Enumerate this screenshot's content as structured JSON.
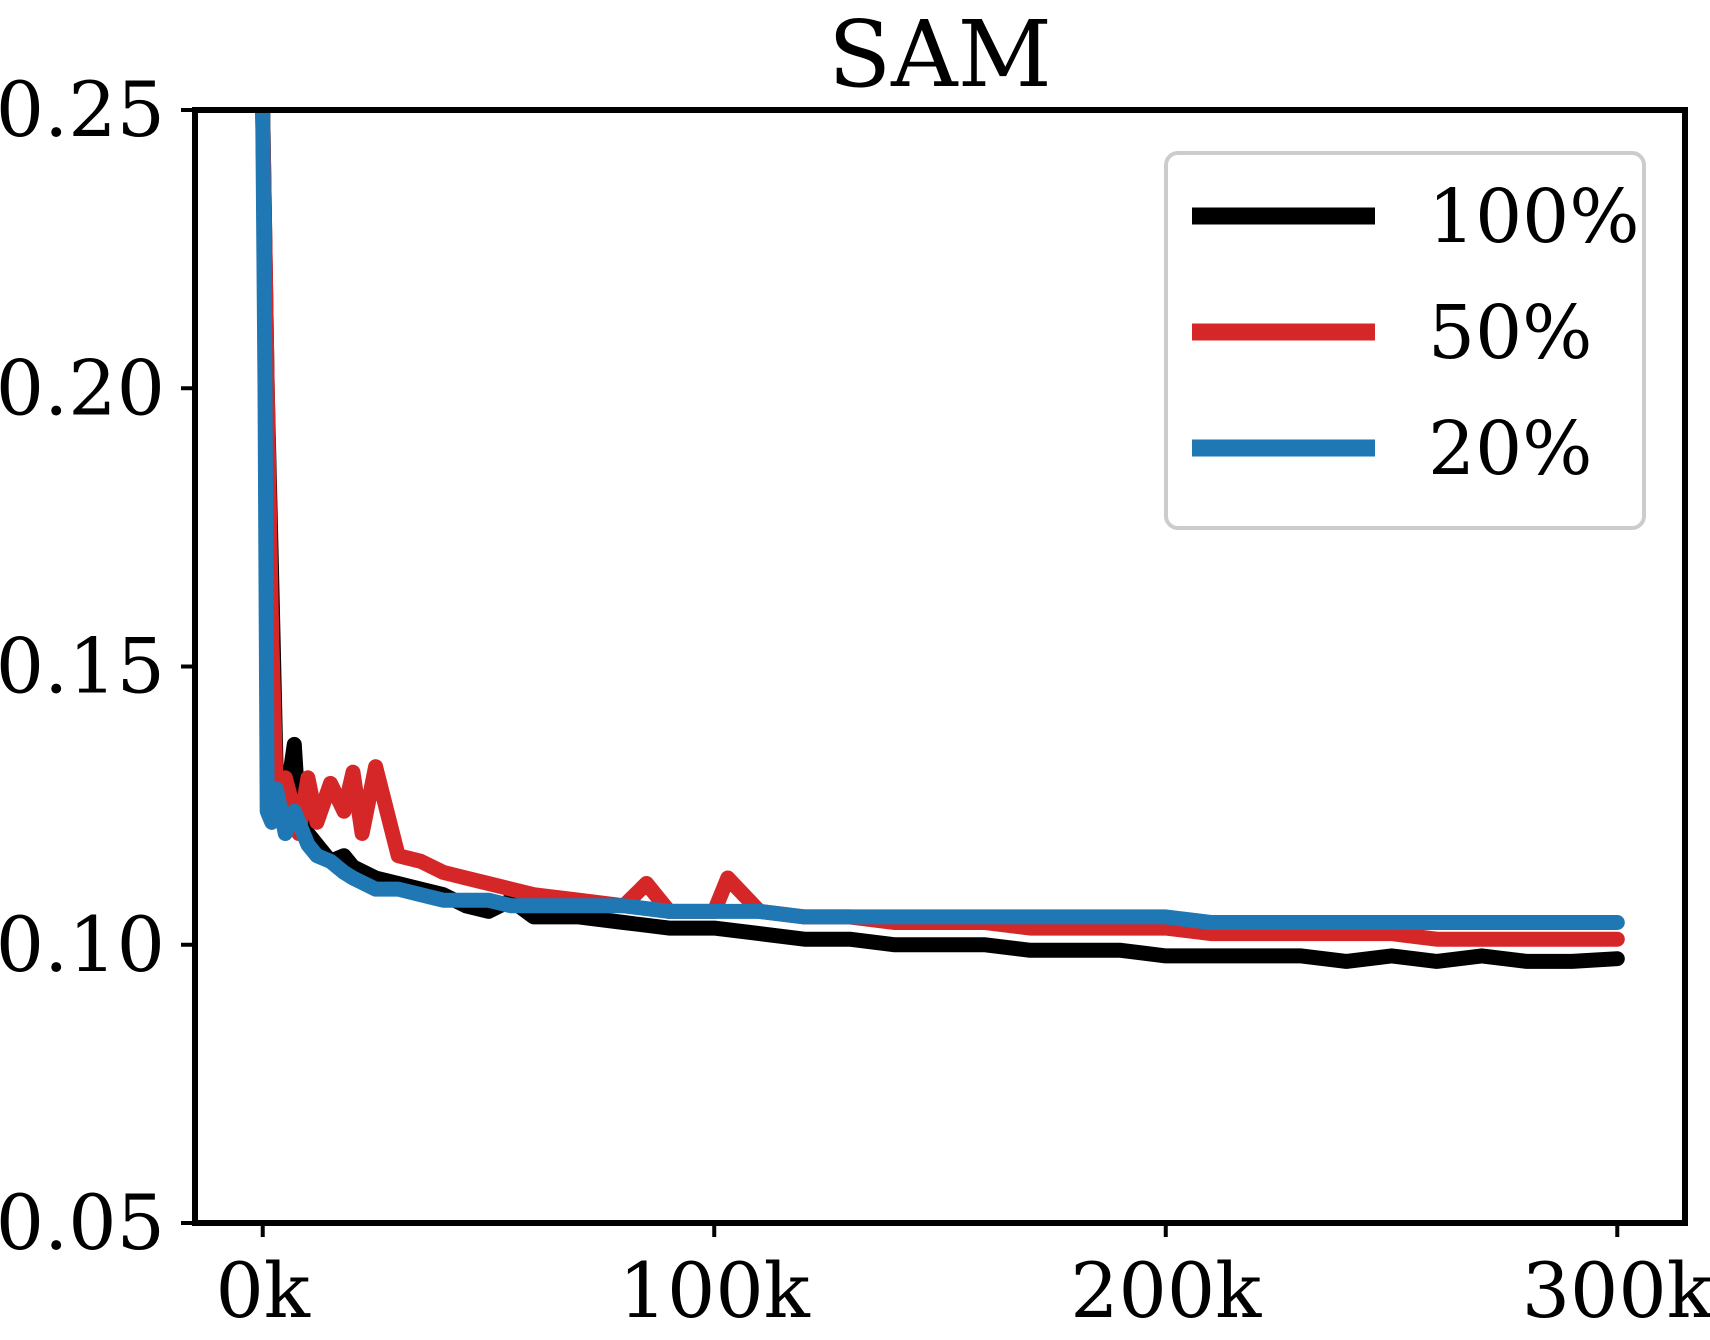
{
  "chart_data": {
    "type": "line",
    "title": "SAM",
    "xlabel": "",
    "ylabel": "",
    "xlim": [
      -15000,
      315000
    ],
    "ylim": [
      0.05,
      0.25
    ],
    "x_ticks": [
      0,
      100000,
      200000,
      300000
    ],
    "x_tick_labels": [
      "0k",
      "100k",
      "200k",
      "300k"
    ],
    "y_ticks": [
      0.05,
      0.1,
      0.15,
      0.2,
      0.25
    ],
    "y_tick_labels": [
      "0.05",
      "0.10",
      "0.15",
      "0.20",
      "0.25"
    ],
    "grid": false,
    "legend_position": "top-right",
    "series": [
      {
        "name": "100%",
        "color": "#000000",
        "x": [
          0,
          1000,
          2000,
          3000,
          5000,
          7000,
          8000,
          10000,
          12000,
          15000,
          18000,
          20000,
          25000,
          30000,
          35000,
          40000,
          45000,
          50000,
          55000,
          60000,
          70000,
          80000,
          90000,
          100000,
          110000,
          120000,
          130000,
          140000,
          150000,
          160000,
          170000,
          180000,
          190000,
          200000,
          210000,
          220000,
          230000,
          240000,
          250000,
          260000,
          270000,
          280000,
          290000,
          300000
        ],
        "y": [
          0.25,
          0.2,
          0.165,
          0.13,
          0.125,
          0.136,
          0.123,
          0.12,
          0.118,
          0.115,
          0.116,
          0.114,
          0.112,
          0.111,
          0.11,
          0.109,
          0.107,
          0.106,
          0.108,
          0.105,
          0.105,
          0.104,
          0.103,
          0.103,
          0.102,
          0.101,
          0.101,
          0.1,
          0.1,
          0.1,
          0.099,
          0.099,
          0.099,
          0.098,
          0.098,
          0.098,
          0.098,
          0.097,
          0.098,
          0.097,
          0.098,
          0.097,
          0.097,
          0.0975
        ]
      },
      {
        "name": "50%",
        "color": "#d62728",
        "x": [
          0,
          1000,
          2000,
          3000,
          5000,
          7000,
          8000,
          10000,
          12000,
          15000,
          18000,
          20000,
          22000,
          25000,
          30000,
          35000,
          40000,
          45000,
          50000,
          55000,
          60000,
          70000,
          80000,
          85000,
          90000,
          100000,
          103000,
          110000,
          120000,
          130000,
          140000,
          150000,
          160000,
          170000,
          180000,
          190000,
          200000,
          210000,
          220000,
          230000,
          240000,
          250000,
          260000,
          270000,
          280000,
          290000,
          300000
        ],
        "y": [
          0.25,
          0.2,
          0.155,
          0.127,
          0.13,
          0.124,
          0.12,
          0.13,
          0.122,
          0.129,
          0.124,
          0.131,
          0.12,
          0.132,
          0.116,
          0.115,
          0.113,
          0.112,
          0.111,
          0.11,
          0.109,
          0.108,
          0.107,
          0.111,
          0.106,
          0.106,
          0.112,
          0.106,
          0.105,
          0.105,
          0.104,
          0.104,
          0.104,
          0.103,
          0.103,
          0.103,
          0.103,
          0.102,
          0.102,
          0.102,
          0.102,
          0.102,
          0.101,
          0.101,
          0.101,
          0.101,
          0.101
        ]
      },
      {
        "name": "20%",
        "color": "#1f77b4",
        "x": [
          0,
          500,
          1000,
          2000,
          3000,
          5000,
          7000,
          10000,
          12000,
          15000,
          18000,
          20000,
          25000,
          30000,
          35000,
          40000,
          45000,
          50000,
          55000,
          60000,
          70000,
          80000,
          90000,
          100000,
          110000,
          120000,
          130000,
          140000,
          150000,
          160000,
          170000,
          180000,
          190000,
          200000,
          210000,
          220000,
          230000,
          240000,
          250000,
          260000,
          270000,
          280000,
          290000,
          300000
        ],
        "y": [
          0.25,
          0.2,
          0.124,
          0.122,
          0.128,
          0.12,
          0.124,
          0.118,
          0.116,
          0.115,
          0.113,
          0.112,
          0.11,
          0.11,
          0.109,
          0.108,
          0.108,
          0.108,
          0.107,
          0.107,
          0.107,
          0.107,
          0.106,
          0.106,
          0.106,
          0.105,
          0.105,
          0.105,
          0.105,
          0.105,
          0.105,
          0.105,
          0.105,
          0.105,
          0.104,
          0.104,
          0.104,
          0.104,
          0.104,
          0.104,
          0.104,
          0.104,
          0.104,
          0.104
        ]
      }
    ]
  }
}
